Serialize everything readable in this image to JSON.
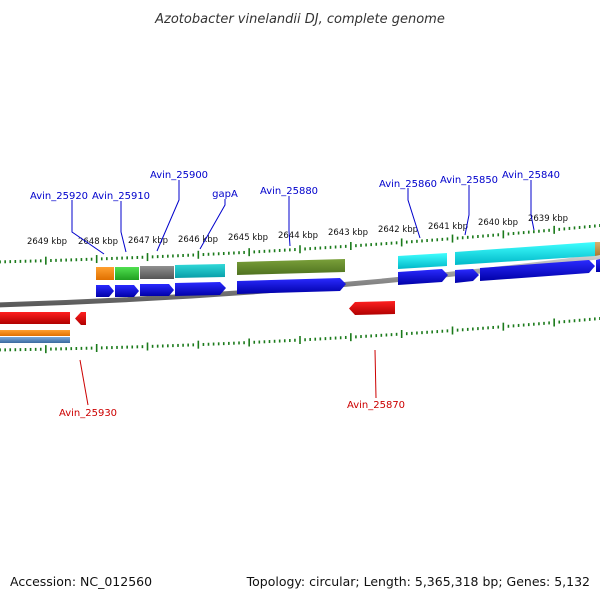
{
  "title": "Azotobacter vinelandii DJ, complete genome",
  "footer": {
    "accession": "Accession: NC_012560",
    "summary": "Topology: circular; Length: 5,365,318 bp; Genes: 5,132"
  },
  "colors": {
    "forward_label": "#0000cc",
    "reverse_label": "#cc0000",
    "ruler": "#1a7a1a",
    "backbone": "#888888"
  },
  "ruler_labels": [
    "2649 kbp",
    "2648 kbp",
    "2647 kbp",
    "2646 kbp",
    "2645 kbp",
    "2644 kbp",
    "2643 kbp",
    "2642 kbp",
    "2641 kbp",
    "2640 kbp",
    "2639 kbp"
  ],
  "forward_labels": [
    "Avin_25920",
    "Avin_25910",
    "Avin_25900",
    "gapA",
    "Avin_25880",
    "Avin_25860",
    "Avin_25850",
    "Avin_25840"
  ],
  "reverse_labels": [
    "Avin_25930",
    "Avin_25870"
  ]
}
